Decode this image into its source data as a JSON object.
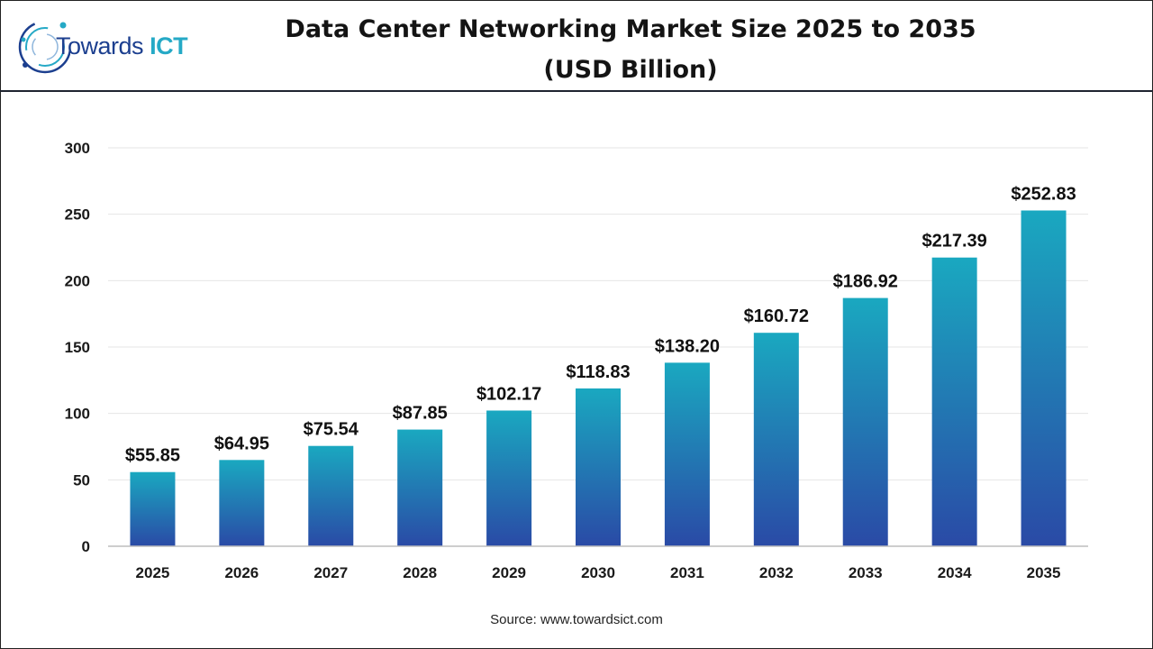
{
  "header": {
    "logo": {
      "word1": "Towards",
      "word2": "ICT"
    },
    "title_line1": "Data Center Networking Market Size 2025 to 2035",
    "title_line2": "(USD Billion)"
  },
  "colors": {
    "bar_top": "#1aa8c0",
    "bar_bottom": "#2a4aa6",
    "logo_dark": "#1c3f8f",
    "logo_light": "#25a9c6"
  },
  "chart_data": {
    "type": "bar",
    "title": "Data Center Networking Market Size 2025 to 2035",
    "subtitle": "(USD Billion)",
    "xlabel": "",
    "ylabel": "",
    "categories": [
      "2025",
      "2026",
      "2027",
      "2028",
      "2029",
      "2030",
      "2031",
      "2032",
      "2033",
      "2034",
      "2035"
    ],
    "values": [
      55.85,
      64.95,
      75.54,
      87.85,
      102.17,
      118.83,
      138.2,
      160.72,
      186.92,
      217.39,
      252.83
    ],
    "value_labels": [
      "$55.85",
      "$64.95",
      "$75.54",
      "$87.85",
      "$102.17",
      "$118.83",
      "$138.20",
      "$160.72",
      "$186.92",
      "$217.39",
      "$252.83"
    ],
    "ylim": [
      0,
      300
    ],
    "yticks": [
      "0",
      "50",
      "100",
      "150",
      "200",
      "250",
      "300"
    ],
    "grid": true,
    "legend": "none"
  },
  "footer": {
    "source": "Source: www.towardsict.com"
  }
}
